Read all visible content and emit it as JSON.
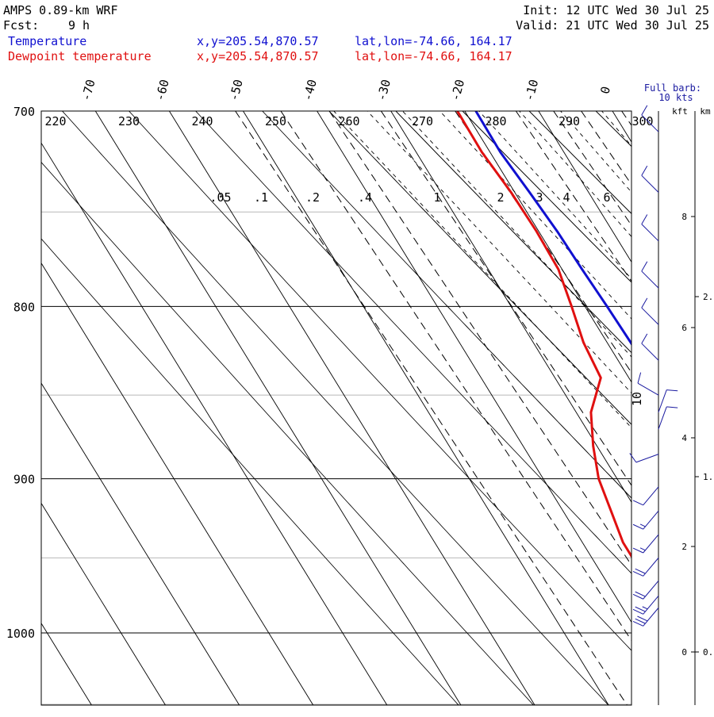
{
  "header": {
    "model": "AMPS 0.89-km WRF",
    "fcst_label": "Fcst:",
    "fcst_value": "9 h",
    "init": "Init: 12 UTC Wed 30 Jul 25",
    "valid": "Valid: 21 UTC Wed 30 Jul 25",
    "temp_name": "Temperature",
    "temp_xy": "x,y=205.54,870.57",
    "temp_latlon": "lat,lon=-74.66, 164.17",
    "dew_name": "Dewpoint temperature",
    "dew_xy": "x,y=205.54,870.57",
    "dew_latlon": "lat,lon=-74.66, 164.17"
  },
  "barb_legend": {
    "line1": "Full barb:",
    "line2": "10 kts"
  },
  "colors": {
    "temperature": "#1010d0",
    "dewpoint": "#e01010",
    "legend_blue": "#1a1aa0"
  },
  "chart_data": {
    "type": "line",
    "diagram": "skew-T log-p",
    "ylim": [
      1050,
      700
    ],
    "yscale": "log",
    "xlim": [
      -75,
      5
    ],
    "pressure_ticks": [
      700,
      800,
      900,
      1000
    ],
    "temperature_ticks": [
      -70,
      -60,
      -50,
      -40,
      -30,
      -20,
      -10,
      0
    ],
    "theta_labels": [
      "220",
      "230",
      "240",
      "250",
      "260",
      "270",
      "280",
      "290",
      "300"
    ],
    "mixing_ratio_labels": [
      ".05",
      ".1",
      ".2",
      ".4",
      "1",
      "2",
      "3",
      "4",
      "6"
    ],
    "kft_ticks": [
      "8",
      "6",
      "4",
      "2",
      "0"
    ],
    "km_ticks": [
      "2.",
      "1.",
      "0."
    ],
    "km_header": "km",
    "kft_header": "kft",
    "barb_label": "10",
    "series": [
      {
        "name": "Temperature",
        "color": "#1010d0",
        "points": [
          [
            700,
            -18.5
          ],
          [
            720,
            -18.6
          ],
          [
            740,
            -18.0
          ],
          [
            760,
            -17.5
          ],
          [
            780,
            -17.3
          ],
          [
            800,
            -17.0
          ],
          [
            820,
            -16.8
          ],
          [
            840,
            -16.7
          ],
          [
            860,
            -17.5
          ],
          [
            880,
            -18.5
          ],
          [
            900,
            -19.0
          ],
          [
            920,
            -19.1
          ],
          [
            940,
            -19.0
          ],
          [
            960,
            -19.2
          ],
          [
            983,
            -19.2
          ]
        ]
      },
      {
        "name": "Dewpoint temperature",
        "color": "#e01010",
        "points": [
          [
            700,
            -21.0
          ],
          [
            720,
            -21.1
          ],
          [
            740,
            -20.5
          ],
          [
            760,
            -20.3
          ],
          [
            780,
            -20.5
          ],
          [
            800,
            -21.8
          ],
          [
            820,
            -23.2
          ],
          [
            840,
            -23.8
          ],
          [
            860,
            -28.0
          ],
          [
            880,
            -30.5
          ],
          [
            900,
            -32.5
          ],
          [
            920,
            -33.5
          ],
          [
            940,
            -34.5
          ],
          [
            960,
            -34.5
          ],
          [
            970,
            -34.0
          ],
          [
            977,
            -31.0
          ],
          [
            983,
            -25.8
          ]
        ]
      }
    ]
  },
  "wind_barbs": [
    {
      "p": 710,
      "dir": 315,
      "spd": 10
    },
    {
      "p": 740,
      "dir": 315,
      "spd": 10
    },
    {
      "p": 765,
      "dir": 315,
      "spd": 10
    },
    {
      "p": 790,
      "dir": 315,
      "spd": 10
    },
    {
      "p": 810,
      "dir": 315,
      "spd": 10
    },
    {
      "p": 830,
      "dir": 315,
      "spd": 10
    },
    {
      "p": 850,
      "dir": 300,
      "spd": 10
    },
    {
      "p": 860,
      "dir": 20,
      "spd": 10
    },
    {
      "p": 870,
      "dir": 20,
      "spd": 10
    },
    {
      "p": 885,
      "dir": 250,
      "spd": 10
    },
    {
      "p": 905,
      "dir": 220,
      "spd": 10
    },
    {
      "p": 920,
      "dir": 220,
      "spd": 15
    },
    {
      "p": 935,
      "dir": 220,
      "spd": 15
    },
    {
      "p": 950,
      "dir": 220,
      "spd": 20
    },
    {
      "p": 965,
      "dir": 220,
      "spd": 20
    },
    {
      "p": 975,
      "dir": 220,
      "spd": 25
    },
    {
      "p": 983,
      "dir": 220,
      "spd": 30
    }
  ]
}
